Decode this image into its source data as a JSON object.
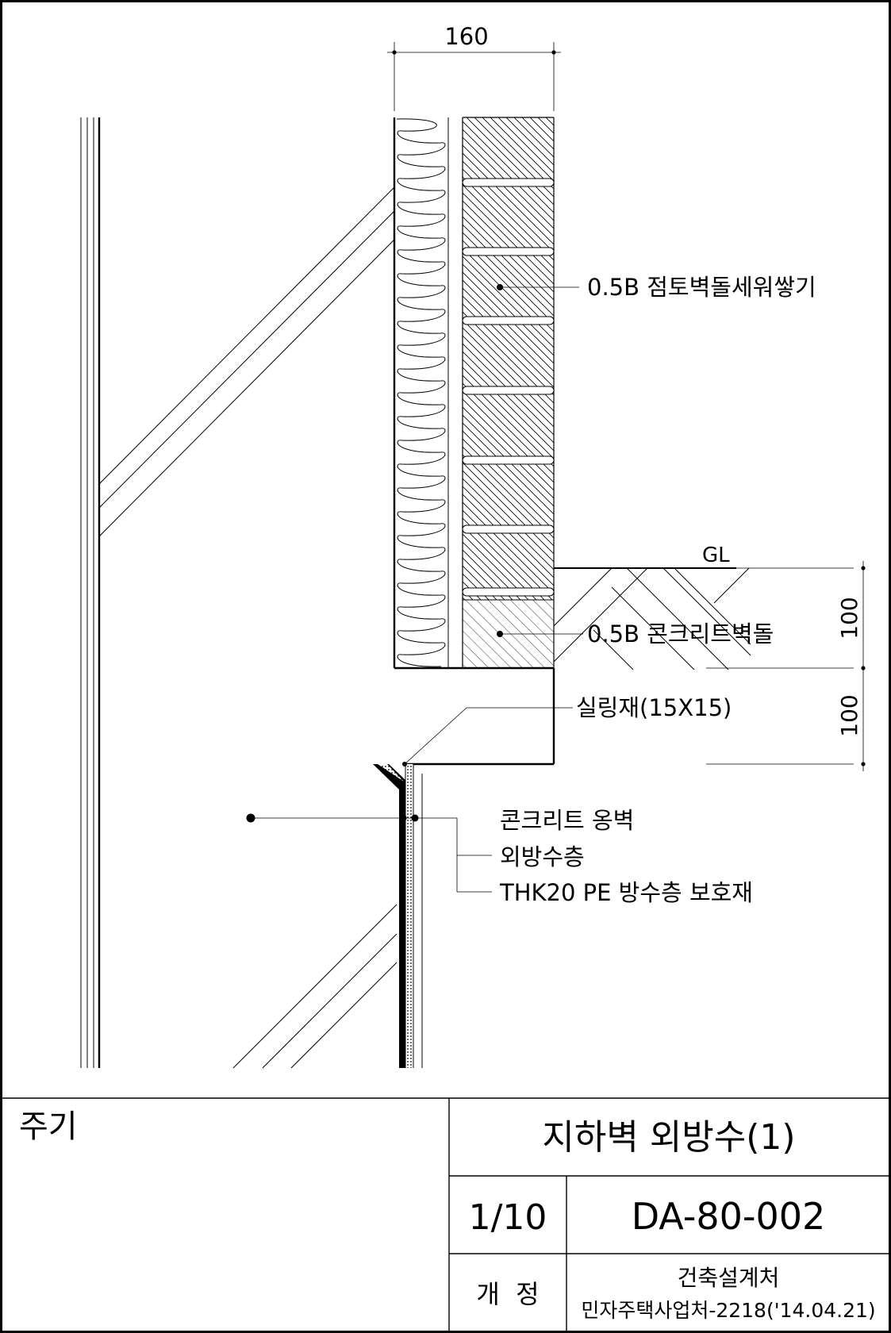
{
  "drawing": {
    "dimensions": {
      "wall_width": "160",
      "upper_height": "100",
      "lower_height": "100"
    },
    "ground_level": "GL",
    "labels": {
      "brick": "0.5B 점토벽돌세워쌓기",
      "concrete_brick": "0.5B 콘크리트벽돌",
      "sealant": "실링재(15X15)",
      "concrete_wall": "콘크리트 옹벽",
      "waterproof": "외방수층",
      "protection": "THK20 PE 방수층 보호재"
    }
  },
  "title_block": {
    "notes_label": "주기",
    "title": "지하벽 외방수(1)",
    "scale": "1/10",
    "drawing_number": "DA-80-002",
    "revision_label": "개  정",
    "department": "건축설계처",
    "reference": "민자주택사업처-2218('14.04.21)"
  }
}
